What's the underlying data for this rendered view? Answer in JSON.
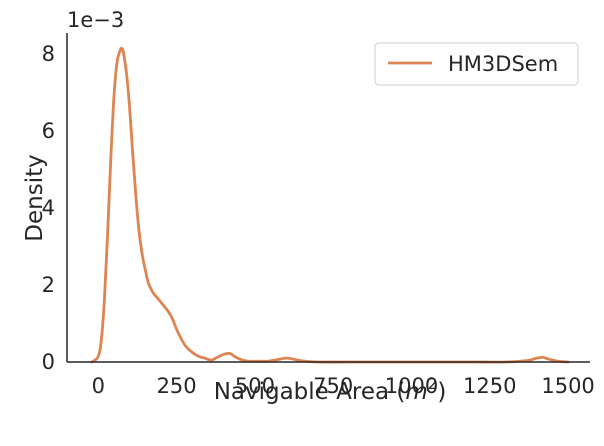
{
  "chart_data": {
    "type": "line",
    "title": "",
    "xlabel_main": "Navigable Area (",
    "xlabel_math": "m",
    "xlabel_sup": "2",
    "xlabel_close": ")",
    "ylabel": "Density",
    "y_offset_label": "1e−3",
    "xlim": [
      -100,
      1570
    ],
    "ylim": [
      0,
      8.55
    ],
    "x_ticks": [
      0,
      250,
      500,
      750,
      1000,
      1250,
      1500
    ],
    "x_tick_labels": [
      "0",
      "250",
      "500",
      "750",
      "1000",
      "1250",
      "1500"
    ],
    "y_ticks": [
      0,
      2,
      4,
      6,
      8
    ],
    "y_tick_labels": [
      "0",
      "2",
      "4",
      "6",
      "8"
    ],
    "grid": false,
    "legend_position": "top-right",
    "series": [
      {
        "name": "HM3DSem",
        "color": "#dd8452",
        "x": [
          -20,
          0,
          10,
          20,
          30,
          40,
          50,
          60,
          70,
          75,
          80,
          90,
          100,
          110,
          120,
          130,
          140,
          150,
          160,
          175,
          190,
          205,
          220,
          235,
          250,
          265,
          280,
          300,
          320,
          340,
          360,
          380,
          400,
          420,
          440,
          460,
          480,
          500,
          540,
          570,
          600,
          620,
          650,
          700,
          800,
          900,
          1000,
          1100,
          1200,
          1300,
          1370,
          1400,
          1420,
          1440,
          1470,
          1500
        ],
        "y": [
          0.0,
          0.15,
          0.6,
          1.7,
          3.4,
          5.3,
          6.9,
          7.8,
          8.1,
          8.15,
          8.05,
          7.5,
          6.6,
          5.4,
          4.3,
          3.4,
          2.8,
          2.4,
          2.05,
          1.8,
          1.65,
          1.5,
          1.35,
          1.15,
          0.85,
          0.6,
          0.4,
          0.25,
          0.15,
          0.1,
          0.05,
          0.12,
          0.2,
          0.22,
          0.12,
          0.05,
          0.02,
          0.02,
          0.02,
          0.06,
          0.1,
          0.08,
          0.03,
          0.0,
          0.0,
          0.0,
          0.0,
          0.0,
          0.0,
          0.0,
          0.04,
          0.1,
          0.12,
          0.07,
          0.02,
          0.0
        ]
      }
    ]
  }
}
